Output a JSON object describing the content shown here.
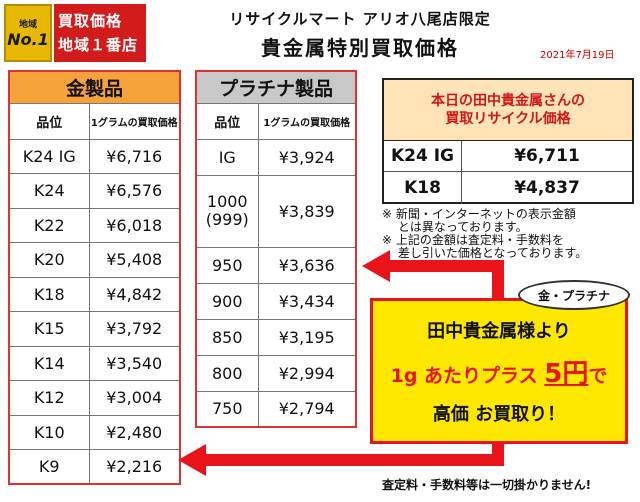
{
  "badge": {
    "small": "地域",
    "no1": "No.1",
    "line1": "買取価格",
    "line2": "地域１番店"
  },
  "header": {
    "store": "リサイクルマート アリオ八尾店限定",
    "title": "貴金属特別買取価格",
    "date": "2021年7月19日"
  },
  "gold": {
    "title": "金製品",
    "col1": "品位",
    "col2": "1グラムの買取価格",
    "rows": [
      {
        "grade": "K24 IG",
        "price": "¥6,716"
      },
      {
        "grade": "K24",
        "price": "¥6,576"
      },
      {
        "grade": "K22",
        "price": "¥6,018"
      },
      {
        "grade": "K20",
        "price": "¥5,408"
      },
      {
        "grade": "K18",
        "price": "¥4,842"
      },
      {
        "grade": "K15",
        "price": "¥3,792"
      },
      {
        "grade": "K14",
        "price": "¥3,540"
      },
      {
        "grade": "K12",
        "price": "¥3,004"
      },
      {
        "grade": "K10",
        "price": "¥2,480"
      },
      {
        "grade": "K9",
        "price": "¥2,216"
      }
    ]
  },
  "platinum": {
    "title": "プラチナ製品",
    "col1": "品位",
    "col2": "1グラムの買取価格",
    "rows": [
      {
        "grade": "IG",
        "price": "¥3,924"
      },
      {
        "grade": "1000\n(999)",
        "price": "¥3,839"
      },
      {
        "grade": "950",
        "price": "¥3,636"
      },
      {
        "grade": "900",
        "price": "¥3,434"
      },
      {
        "grade": "850",
        "price": "¥3,195"
      },
      {
        "grade": "800",
        "price": "¥2,994"
      },
      {
        "grade": "750",
        "price": "¥2,794"
      }
    ]
  },
  "today": {
    "line1": "本日の田中貴金属さんの",
    "line2": "買取リサイクル価格",
    "rows": [
      {
        "grade": "K24 IG",
        "price": "¥6,711"
      },
      {
        "grade": "K18",
        "price": "¥4,837"
      }
    ]
  },
  "notes": [
    "※ 新聞・インターネットの表示金額",
    "　 とは異なっております。",
    "※ 上記の金額は査定料・手数料を",
    "　 差し引いた価格となっております。"
  ],
  "bubble": "金・プラチナ",
  "promo": {
    "line1": "田中貴金属様より",
    "line2_pre": "1g あたりプラス ",
    "line2_big": "5円",
    "line2_post": "で",
    "line3": "高価 お買取り！"
  },
  "footer": "査定料・手数料等は一切掛かりません!",
  "colors": {
    "red": "#e8141a",
    "gold_header": "#f6a23a",
    "plat_header": "#c8c8c8",
    "promo_bg": "#ffe800",
    "today_head": "#fde3b6"
  }
}
